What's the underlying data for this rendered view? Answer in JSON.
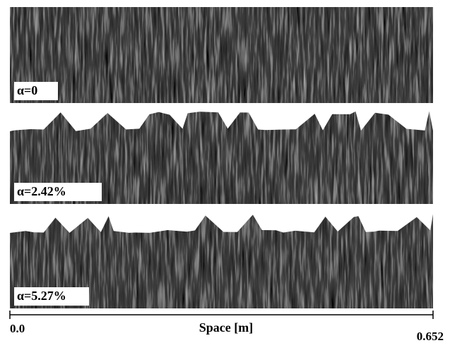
{
  "panels": [
    {
      "label": "α=0"
    },
    {
      "label": "α=2.42%"
    },
    {
      "label": "α=5.27%"
    }
  ],
  "axis": {
    "title": "Space [m]",
    "start": "0.0",
    "end": "0.652"
  }
}
